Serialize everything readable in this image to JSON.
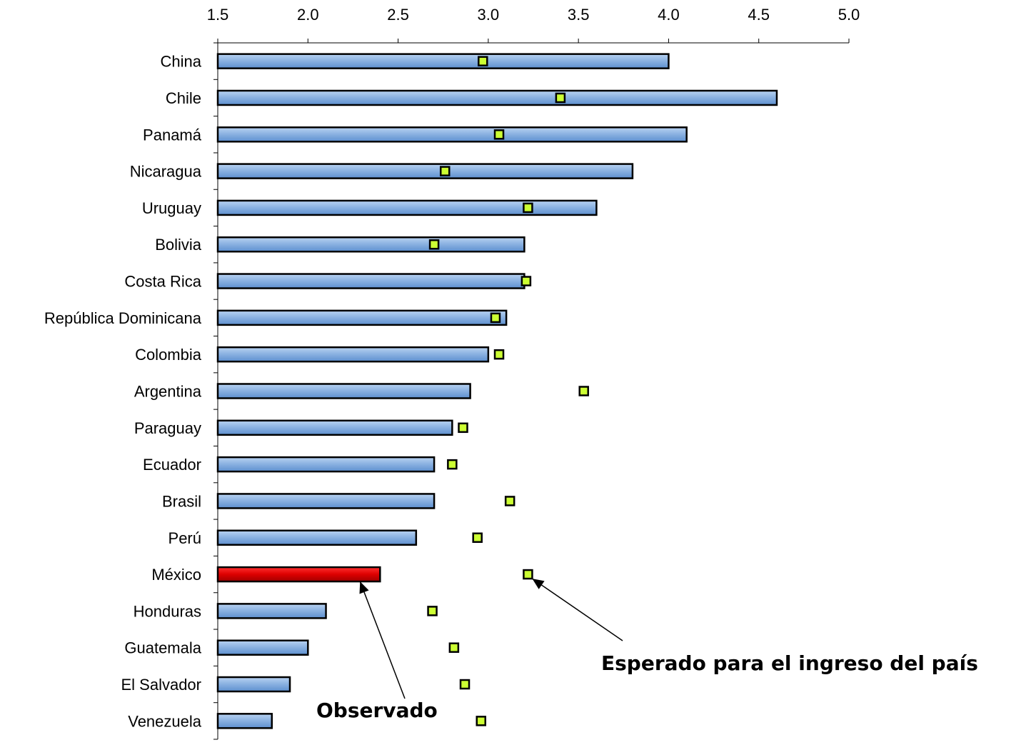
{
  "chart_data": {
    "type": "bar",
    "orientation": "horizontal",
    "categories": [
      "China",
      "Chile",
      "Panamá",
      "Nicaragua",
      "Uruguay",
      "Bolivia",
      "Costa Rica",
      "República Dominicana",
      "Colombia",
      "Argentina",
      "Paraguay",
      "Ecuador",
      "Brasil",
      "Perú",
      "México",
      "Honduras",
      "Guatemala",
      "El Salvador",
      "Venezuela"
    ],
    "series": [
      {
        "name": "Observado",
        "marker": "bar",
        "values": [
          4.0,
          4.6,
          4.1,
          3.8,
          3.6,
          3.2,
          3.2,
          3.1,
          3.0,
          2.9,
          2.8,
          2.7,
          2.7,
          2.6,
          2.4,
          2.1,
          2.0,
          1.9,
          1.8
        ]
      },
      {
        "name": "Esperado para el ingreso del país",
        "marker": "square",
        "values": [
          2.97,
          3.4,
          3.06,
          2.76,
          3.22,
          2.7,
          3.21,
          3.04,
          3.06,
          3.53,
          2.86,
          2.8,
          3.12,
          2.94,
          3.22,
          2.69,
          2.81,
          2.87,
          2.96
        ]
      }
    ],
    "xlim": [
      1.5,
      5.0
    ],
    "xticks": [
      "1.5",
      "2.0",
      "2.5",
      "3.0",
      "3.5",
      "4.0",
      "4.5",
      "5.0"
    ],
    "xaxis_position": "top",
    "highlight_category": "México",
    "grid": false,
    "colors": {
      "bar": "#8db3e2",
      "bar_highlight": "#dd0000",
      "marker_fill": "#ccff33",
      "outline": "#000000"
    },
    "annotations": [
      {
        "text": "Observado",
        "points_to": "México bar"
      },
      {
        "text": "Esperado para el ingreso del país",
        "points_to": "México marker"
      }
    ]
  }
}
